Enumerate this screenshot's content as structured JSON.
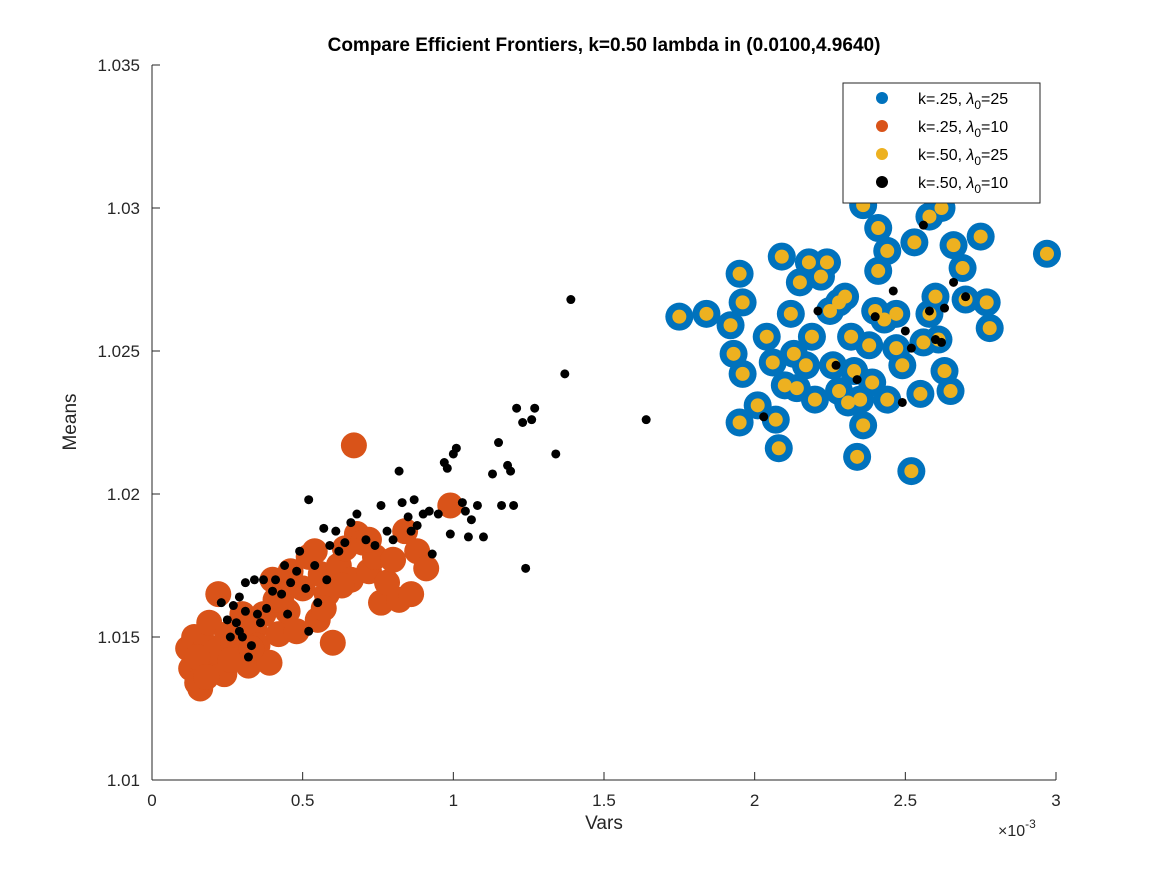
{
  "chart_data": {
    "type": "scatter",
    "title": "Compare Efficient Frontiers, k=0.50 lambda in (0.0100,4.9640)",
    "xlabel": "Vars",
    "ylabel": "Means",
    "x_exponent_label": "×10",
    "x_exponent_power": "-3",
    "xlim": [
      0,
      3
    ],
    "ylim": [
      1.01,
      1.035
    ],
    "xticks": [
      "0",
      "0.5",
      "1",
      "1.5",
      "2",
      "2.5",
      "3"
    ],
    "yticks": [
      "1.01",
      "1.015",
      "1.02",
      "1.025",
      "1.03",
      "1.035"
    ],
    "x_units": "x 10^-3",
    "legend_position": "top-right",
    "grid": false,
    "series": [
      {
        "name": "k=.25, λ0=25",
        "legend_prefix": "k=.25, ",
        "legend_symbol": "λ",
        "legend_sub": "0",
        "legend_suffix": "=25",
        "color": "#0072BD",
        "points": [
          [
            1.75,
            1.0262
          ],
          [
            1.84,
            1.0263
          ],
          [
            1.92,
            1.0259
          ],
          [
            1.96,
            1.0267
          ],
          [
            1.95,
            1.0277
          ],
          [
            1.93,
            1.0249
          ],
          [
            1.96,
            1.0242
          ],
          [
            1.95,
            1.0225
          ],
          [
            2.01,
            1.0231
          ],
          [
            2.07,
            1.0226
          ],
          [
            2.08,
            1.0216
          ],
          [
            2.04,
            1.0255
          ],
          [
            2.06,
            1.0246
          ],
          [
            2.09,
            1.0283
          ],
          [
            2.12,
            1.0263
          ],
          [
            2.15,
            1.0274
          ],
          [
            2.18,
            1.0281
          ],
          [
            2.13,
            1.0249
          ],
          [
            2.17,
            1.0245
          ],
          [
            2.14,
            1.0237
          ],
          [
            2.2,
            1.0233
          ],
          [
            2.22,
            1.0276
          ],
          [
            2.26,
            1.0245
          ],
          [
            2.25,
            1.0264
          ],
          [
            2.28,
            1.0236
          ],
          [
            2.31,
            1.0232
          ],
          [
            2.33,
            1.0243
          ],
          [
            2.35,
            1.0233
          ],
          [
            2.34,
            1.0213
          ],
          [
            2.36,
            1.0224
          ],
          [
            2.39,
            1.0239
          ],
          [
            2.38,
            1.0252
          ],
          [
            2.4,
            1.0264
          ],
          [
            2.43,
            1.0261
          ],
          [
            2.41,
            1.0278
          ],
          [
            2.44,
            1.0285
          ],
          [
            2.47,
            1.0263
          ],
          [
            2.44,
            1.0233
          ],
          [
            2.49,
            1.0245
          ],
          [
            2.52,
            1.0208
          ],
          [
            2.56,
            1.0253
          ],
          [
            2.58,
            1.0263
          ],
          [
            2.61,
            1.0254
          ],
          [
            2.63,
            1.0243
          ],
          [
            2.65,
            1.0236
          ],
          [
            2.58,
            1.0297
          ],
          [
            2.62,
            1.03
          ],
          [
            2.66,
            1.0287
          ],
          [
            2.69,
            1.0279
          ],
          [
            2.7,
            1.0268
          ],
          [
            2.75,
            1.029
          ],
          [
            2.77,
            1.0267
          ],
          [
            2.78,
            1.0258
          ],
          [
            2.97,
            1.0284
          ],
          [
            2.36,
            1.0301
          ],
          [
            2.24,
            1.0281
          ],
          [
            2.3,
            1.0269
          ],
          [
            2.19,
            1.0255
          ],
          [
            2.1,
            1.0238
          ],
          [
            2.47,
            1.0251
          ],
          [
            2.55,
            1.0235
          ],
          [
            2.6,
            1.0269
          ],
          [
            2.53,
            1.0288
          ],
          [
            2.32,
            1.0255
          ],
          [
            2.28,
            1.0267
          ],
          [
            2.41,
            1.0293
          ],
          [
            2.71,
            1.0309
          ],
          [
            2.79,
            1.0307
          ]
        ],
        "marker_size": 14
      },
      {
        "name": "k=.25, λ0=10",
        "legend_prefix": "k=.25, ",
        "legend_symbol": "λ",
        "legend_sub": "0",
        "legend_suffix": "=10",
        "color": "#D95319",
        "points": [
          [
            0.12,
            1.0146
          ],
          [
            0.13,
            1.0139
          ],
          [
            0.14,
            1.015
          ],
          [
            0.15,
            1.0134
          ],
          [
            0.16,
            1.0132
          ],
          [
            0.17,
            1.0141
          ],
          [
            0.18,
            1.0147
          ],
          [
            0.19,
            1.0155
          ],
          [
            0.2,
            1.014
          ],
          [
            0.21,
            1.0145
          ],
          [
            0.22,
            1.0165
          ],
          [
            0.24,
            1.0137
          ],
          [
            0.25,
            1.0151
          ],
          [
            0.27,
            1.0148
          ],
          [
            0.29,
            1.0143
          ],
          [
            0.3,
            1.0158
          ],
          [
            0.32,
            1.014
          ],
          [
            0.34,
            1.0153
          ],
          [
            0.35,
            1.0147
          ],
          [
            0.37,
            1.0158
          ],
          [
            0.39,
            1.0141
          ],
          [
            0.4,
            1.017
          ],
          [
            0.42,
            1.0151
          ],
          [
            0.43,
            1.0162
          ],
          [
            0.45,
            1.0159
          ],
          [
            0.47,
            1.0168
          ],
          [
            0.48,
            1.0152
          ],
          [
            0.5,
            1.0167
          ],
          [
            0.52,
            1.0178
          ],
          [
            0.54,
            1.018
          ],
          [
            0.55,
            1.0156
          ],
          [
            0.56,
            1.0172
          ],
          [
            0.58,
            1.0165
          ],
          [
            0.6,
            1.0148
          ],
          [
            0.62,
            1.0175
          ],
          [
            0.64,
            1.0181
          ],
          [
            0.66,
            1.017
          ],
          [
            0.68,
            1.0186
          ],
          [
            0.7,
            1.0183
          ],
          [
            0.72,
            1.0173
          ],
          [
            0.74,
            1.0178
          ],
          [
            0.76,
            1.0162
          ],
          [
            0.78,
            1.0169
          ],
          [
            0.8,
            1.0177
          ],
          [
            0.82,
            1.0163
          ],
          [
            0.84,
            1.0187
          ],
          [
            0.86,
            1.0165
          ],
          [
            0.88,
            1.018
          ],
          [
            0.91,
            1.0174
          ],
          [
            0.67,
            1.0217
          ],
          [
            0.99,
            1.0196
          ],
          [
            0.15,
            1.0143
          ],
          [
            0.18,
            1.0136
          ],
          [
            0.26,
            1.0142
          ],
          [
            0.33,
            1.0146
          ],
          [
            0.41,
            1.0163
          ],
          [
            0.46,
            1.0173
          ],
          [
            0.57,
            1.016
          ],
          [
            0.63,
            1.0168
          ],
          [
            0.72,
            1.0184
          ]
        ],
        "marker_size": 13
      },
      {
        "name": "k=.50, λ0=25",
        "legend_prefix": "k=.50, ",
        "legend_symbol": "λ",
        "legend_sub": "0",
        "legend_suffix": "=25",
        "color": "#EDB120",
        "points": [
          [
            1.75,
            1.0262
          ],
          [
            1.84,
            1.0263
          ],
          [
            1.92,
            1.0259
          ],
          [
            1.96,
            1.0267
          ],
          [
            1.95,
            1.0277
          ],
          [
            1.93,
            1.0249
          ],
          [
            1.96,
            1.0242
          ],
          [
            1.95,
            1.0225
          ],
          [
            2.01,
            1.0231
          ],
          [
            2.07,
            1.0226
          ],
          [
            2.08,
            1.0216
          ],
          [
            2.04,
            1.0255
          ],
          [
            2.06,
            1.0246
          ],
          [
            2.09,
            1.0283
          ],
          [
            2.12,
            1.0263
          ],
          [
            2.15,
            1.0274
          ],
          [
            2.18,
            1.0281
          ],
          [
            2.13,
            1.0249
          ],
          [
            2.17,
            1.0245
          ],
          [
            2.14,
            1.0237
          ],
          [
            2.2,
            1.0233
          ],
          [
            2.22,
            1.0276
          ],
          [
            2.26,
            1.0245
          ],
          [
            2.25,
            1.0264
          ],
          [
            2.28,
            1.0236
          ],
          [
            2.31,
            1.0232
          ],
          [
            2.33,
            1.0243
          ],
          [
            2.35,
            1.0233
          ],
          [
            2.34,
            1.0213
          ],
          [
            2.36,
            1.0224
          ],
          [
            2.39,
            1.0239
          ],
          [
            2.38,
            1.0252
          ],
          [
            2.4,
            1.0264
          ],
          [
            2.43,
            1.0261
          ],
          [
            2.41,
            1.0278
          ],
          [
            2.44,
            1.0285
          ],
          [
            2.47,
            1.0263
          ],
          [
            2.44,
            1.0233
          ],
          [
            2.49,
            1.0245
          ],
          [
            2.52,
            1.0208
          ],
          [
            2.56,
            1.0253
          ],
          [
            2.58,
            1.0263
          ],
          [
            2.61,
            1.0254
          ],
          [
            2.63,
            1.0243
          ],
          [
            2.65,
            1.0236
          ],
          [
            2.58,
            1.0297
          ],
          [
            2.62,
            1.03
          ],
          [
            2.66,
            1.0287
          ],
          [
            2.69,
            1.0279
          ],
          [
            2.7,
            1.0268
          ],
          [
            2.75,
            1.029
          ],
          [
            2.77,
            1.0267
          ],
          [
            2.78,
            1.0258
          ],
          [
            2.97,
            1.0284
          ],
          [
            2.36,
            1.0301
          ],
          [
            2.24,
            1.0281
          ],
          [
            2.3,
            1.0269
          ],
          [
            2.19,
            1.0255
          ],
          [
            2.1,
            1.0238
          ],
          [
            2.47,
            1.0251
          ],
          [
            2.55,
            1.0235
          ],
          [
            2.6,
            1.0269
          ],
          [
            2.53,
            1.0288
          ],
          [
            2.32,
            1.0255
          ],
          [
            2.28,
            1.0267
          ],
          [
            2.41,
            1.0293
          ],
          [
            2.71,
            1.0309
          ],
          [
            2.79,
            1.0307
          ]
        ],
        "marker_size": 7
      },
      {
        "name": "k=.50, λ0=10",
        "legend_prefix": "k=.50, ",
        "legend_symbol": "λ",
        "legend_sub": "0",
        "legend_suffix": "=10",
        "color": "#000000",
        "points": [
          [
            0.23,
            1.0162
          ],
          [
            0.25,
            1.0156
          ],
          [
            0.26,
            1.015
          ],
          [
            0.27,
            1.0161
          ],
          [
            0.28,
            1.0155
          ],
          [
            0.29,
            1.0164
          ],
          [
            0.3,
            1.015
          ],
          [
            0.31,
            1.0159
          ],
          [
            0.31,
            1.0169
          ],
          [
            0.32,
            1.0143
          ],
          [
            0.33,
            1.0147
          ],
          [
            0.34,
            1.017
          ],
          [
            0.36,
            1.0155
          ],
          [
            0.38,
            1.016
          ],
          [
            0.4,
            1.0166
          ],
          [
            0.41,
            1.017
          ],
          [
            0.43,
            1.0165
          ],
          [
            0.44,
            1.0175
          ],
          [
            0.45,
            1.0158
          ],
          [
            0.46,
            1.0169
          ],
          [
            0.48,
            1.0173
          ],
          [
            0.49,
            1.018
          ],
          [
            0.51,
            1.0167
          ],
          [
            0.52,
            1.0152
          ],
          [
            0.52,
            1.0198
          ],
          [
            0.54,
            1.0175
          ],
          [
            0.55,
            1.0162
          ],
          [
            0.57,
            1.0188
          ],
          [
            0.58,
            1.017
          ],
          [
            0.59,
            1.0182
          ],
          [
            0.61,
            1.0187
          ],
          [
            0.62,
            1.018
          ],
          [
            0.64,
            1.0183
          ],
          [
            0.66,
            1.019
          ],
          [
            0.68,
            1.0193
          ],
          [
            0.71,
            1.0184
          ],
          [
            0.74,
            1.0182
          ],
          [
            0.76,
            1.0196
          ],
          [
            0.78,
            1.0187
          ],
          [
            0.8,
            1.0184
          ],
          [
            0.82,
            1.0208
          ],
          [
            0.83,
            1.0197
          ],
          [
            0.85,
            1.0192
          ],
          [
            0.86,
            1.0187
          ],
          [
            0.87,
            1.0198
          ],
          [
            0.88,
            1.0189
          ],
          [
            0.9,
            1.0193
          ],
          [
            0.92,
            1.0194
          ],
          [
            0.93,
            1.0179
          ],
          [
            0.95,
            1.0193
          ],
          [
            0.97,
            1.0211
          ],
          [
            0.98,
            1.0209
          ],
          [
            0.99,
            1.0186
          ],
          [
            1.0,
            1.0214
          ],
          [
            1.01,
            1.0216
          ],
          [
            1.03,
            1.0197
          ],
          [
            1.04,
            1.0194
          ],
          [
            1.05,
            1.0185
          ],
          [
            1.06,
            1.0191
          ],
          [
            1.08,
            1.0196
          ],
          [
            1.1,
            1.0185
          ],
          [
            1.13,
            1.0207
          ],
          [
            1.15,
            1.0218
          ],
          [
            1.16,
            1.0196
          ],
          [
            1.18,
            1.021
          ],
          [
            1.19,
            1.0208
          ],
          [
            1.2,
            1.0196
          ],
          [
            1.21,
            1.023
          ],
          [
            1.23,
            1.0225
          ],
          [
            1.24,
            1.0174
          ],
          [
            1.26,
            1.0226
          ],
          [
            1.27,
            1.023
          ],
          [
            1.34,
            1.0214
          ],
          [
            1.37,
            1.0242
          ],
          [
            1.39,
            1.0268
          ],
          [
            1.64,
            1.0226
          ],
          [
            2.21,
            1.0264
          ],
          [
            2.27,
            1.0245
          ],
          [
            2.34,
            1.024
          ],
          [
            2.4,
            1.0262
          ],
          [
            2.46,
            1.0271
          ],
          [
            2.49,
            1.0232
          ],
          [
            2.5,
            1.0257
          ],
          [
            2.52,
            1.0251
          ],
          [
            2.56,
            1.0294
          ],
          [
            2.58,
            1.0264
          ],
          [
            2.6,
            1.0254
          ],
          [
            2.62,
            1.0253
          ],
          [
            2.63,
            1.0265
          ],
          [
            2.66,
            1.0274
          ],
          [
            2.7,
            1.0269
          ],
          [
            2.03,
            1.0227
          ],
          [
            0.37,
            1.017
          ],
          [
            0.35,
            1.0158
          ],
          [
            0.29,
            1.0152
          ]
        ],
        "marker_size": 4.5
      }
    ]
  }
}
